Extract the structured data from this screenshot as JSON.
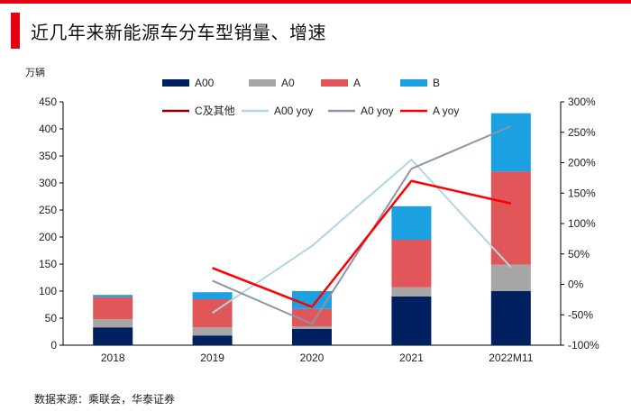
{
  "header": {
    "title": "近几年来新能源车分车型销量、增速",
    "accent_color": "#e60012"
  },
  "footer": {
    "source": "数据来源：乘联会，华泰证券"
  },
  "chart_data": {
    "type": "bar",
    "stacked": true,
    "categories": [
      "2018",
      "2019",
      "2020",
      "2021",
      "2022M11"
    ],
    "ylabel": "万辆",
    "ylim": [
      0,
      450
    ],
    "y_ticks": [
      "0",
      "50",
      "100",
      "150",
      "200",
      "250",
      "300",
      "350",
      "400",
      "450"
    ],
    "y2lim": [
      -100,
      300
    ],
    "y2_ticks": [
      "-100%",
      "-50%",
      "0%",
      "50%",
      "100%",
      "150%",
      "200%",
      "250%",
      "300%"
    ],
    "series": [
      {
        "name": "A00",
        "color": "#002060",
        "values": [
          33,
          18,
          30,
          90,
          100
        ]
      },
      {
        "name": "A0",
        "color": "#a6a6a6",
        "values": [
          15,
          15,
          5,
          17,
          49
        ]
      },
      {
        "name": "A",
        "color": "#e15759",
        "values": [
          41,
          52,
          32,
          88,
          172
        ]
      },
      {
        "name": "B",
        "color": "#1ba1e2",
        "values": [
          4,
          13,
          33,
          62,
          108
        ]
      }
    ],
    "line_series": [
      {
        "name": "C及其他",
        "color": "#8b0000",
        "values": [
          null,
          null,
          null,
          null,
          null
        ]
      },
      {
        "name": "A00 yoy",
        "color": "#aed6e3",
        "values": [
          null,
          -47,
          63,
          205,
          28
        ]
      },
      {
        "name": "A0 yoy",
        "color": "#8d93a8",
        "values": [
          null,
          6,
          -65,
          190,
          260
        ]
      },
      {
        "name": "A yoy",
        "color": "#ff0000",
        "values": [
          null,
          27,
          -37,
          170,
          133
        ]
      }
    ]
  }
}
